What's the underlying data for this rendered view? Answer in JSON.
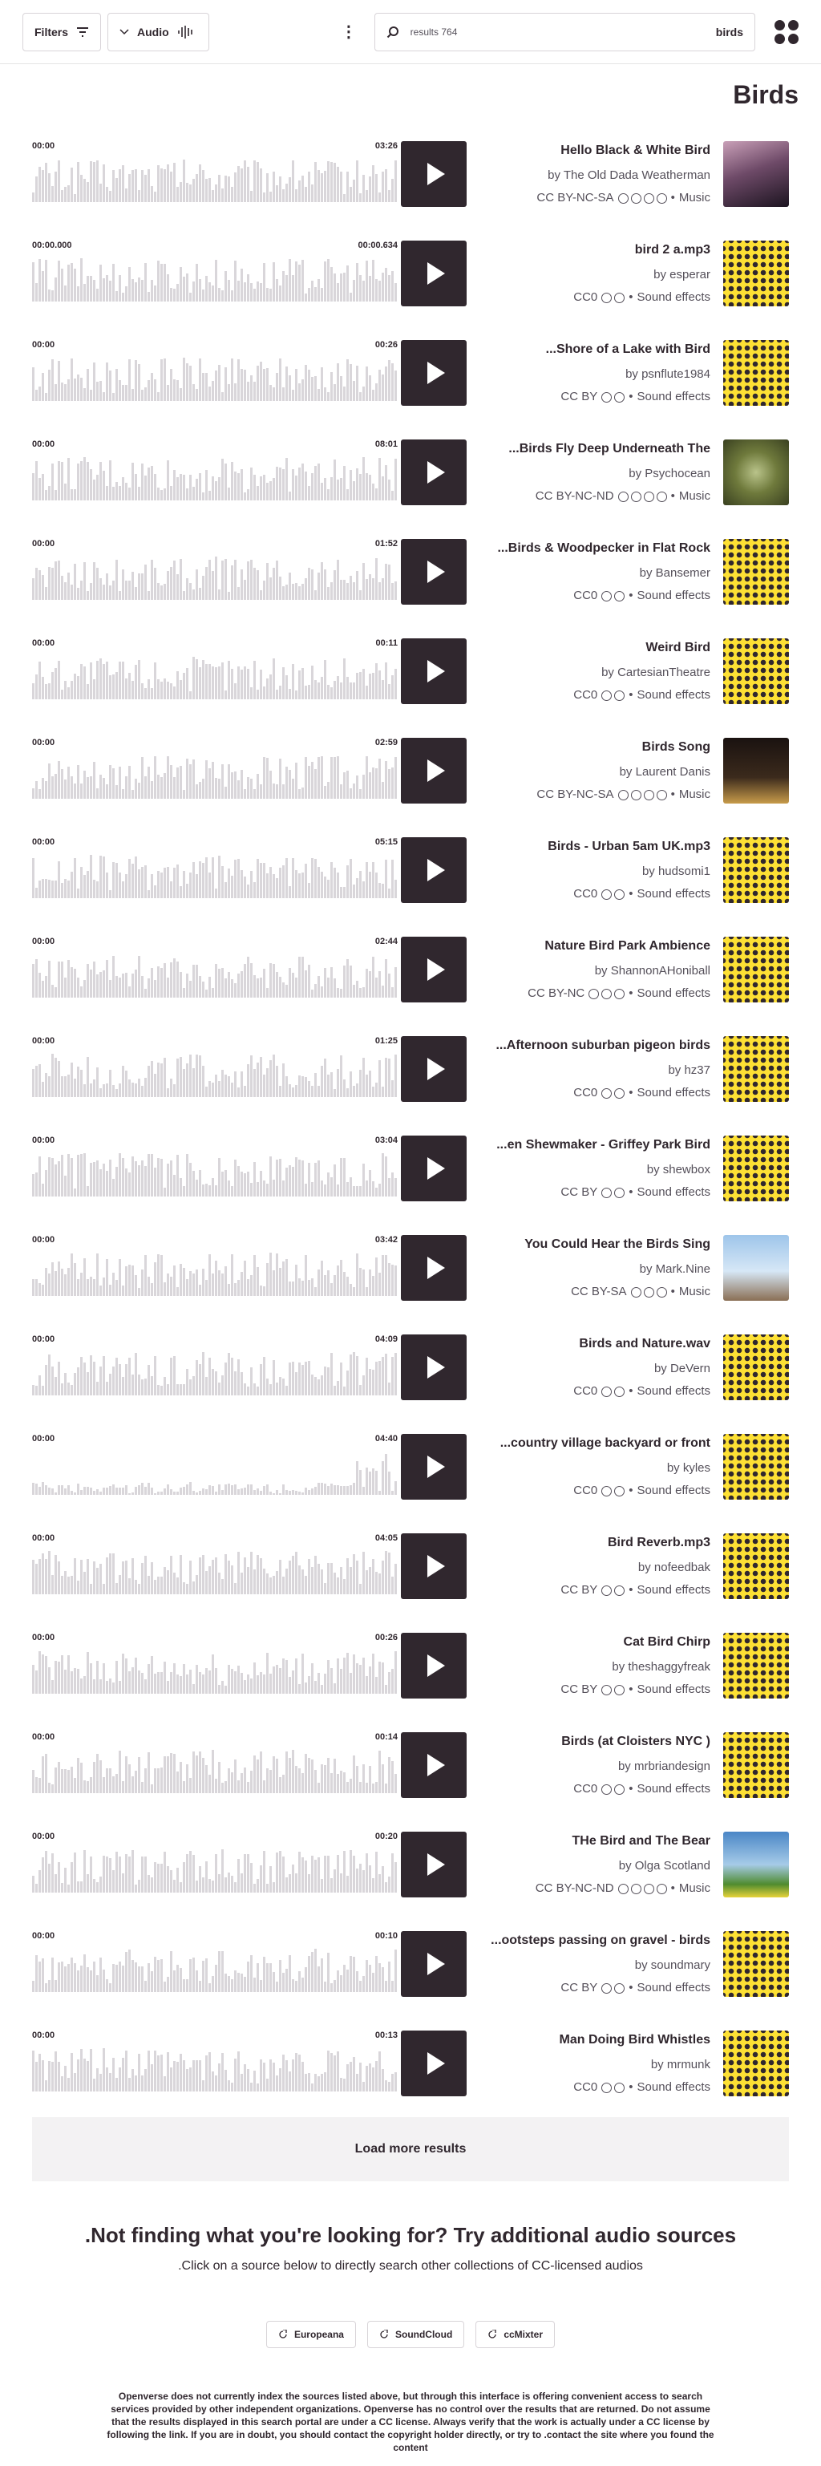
{
  "header": {
    "filters_label": "Filters",
    "content_type_label": "Audio",
    "search_count": "results 764",
    "search_query": "birds"
  },
  "page_title": "Birds",
  "results": [
    {
      "title": "Hello Black & White Bird",
      "author": "by The Old Dada Weatherman",
      "license": "CC BY-NC-SA",
      "category": "Music",
      "time_start": "00:00",
      "time_end": "03:26",
      "license_icon_count": 4,
      "thumb": "photo1"
    },
    {
      "title": "bird 2 a.mp3",
      "author": "by esperar",
      "license": "CC0",
      "category": "Sound effects",
      "time_start": "00:00.000",
      "time_end": "00:00.634",
      "license_icon_count": 2,
      "thumb": "dots"
    },
    {
      "title": "...Shore of a Lake with Bird",
      "author": "by psnflute1984",
      "license": "CC BY",
      "category": "Sound effects",
      "time_start": "00:00",
      "time_end": "00:26",
      "license_icon_count": 2,
      "thumb": "dots"
    },
    {
      "title": "...Birds Fly Deep Underneath The",
      "author": "by Psychocean",
      "license": "CC BY-NC-ND",
      "category": "Music",
      "time_start": "00:00",
      "time_end": "08:01",
      "license_icon_count": 4,
      "thumb": "photo2"
    },
    {
      "title": "...Birds & Woodpecker in Flat Rock",
      "author": "by Bansemer",
      "license": "CC0",
      "category": "Sound effects",
      "time_start": "00:00",
      "time_end": "01:52",
      "license_icon_count": 2,
      "thumb": "dots"
    },
    {
      "title": "Weird Bird",
      "author": "by CartesianTheatre",
      "license": "CC0",
      "category": "Sound effects",
      "time_start": "00:00",
      "time_end": "00:11",
      "license_icon_count": 2,
      "thumb": "dots"
    },
    {
      "title": "Birds Song",
      "author": "by Laurent Danis",
      "license": "CC BY-NC-SA",
      "category": "Music",
      "time_start": "00:00",
      "time_end": "02:59",
      "license_icon_count": 4,
      "thumb": "photo3"
    },
    {
      "title": "Birds - Urban 5am UK.mp3",
      "author": "by hudsomi1",
      "license": "CC0",
      "category": "Sound effects",
      "time_start": "00:00",
      "time_end": "05:15",
      "license_icon_count": 2,
      "thumb": "dots"
    },
    {
      "title": "Nature Bird Park Ambience",
      "author": "by ShannonAHoniball",
      "license": "CC BY-NC",
      "category": "Sound effects",
      "time_start": "00:00",
      "time_end": "02:44",
      "license_icon_count": 3,
      "thumb": "dots"
    },
    {
      "title": "...Afternoon suburban pigeon birds",
      "author": "by hz37",
      "license": "CC0",
      "category": "Sound effects",
      "time_start": "00:00",
      "time_end": "01:25",
      "license_icon_count": 2,
      "thumb": "dots"
    },
    {
      "title": "...en Shewmaker - Griffey Park Bird",
      "author": "by shewbox",
      "license": "CC BY",
      "category": "Sound effects",
      "time_start": "00:00",
      "time_end": "03:04",
      "license_icon_count": 2,
      "thumb": "dots"
    },
    {
      "title": "You Could Hear the Birds Sing",
      "author": "by Mark.Nine",
      "license": "CC BY-SA",
      "category": "Music",
      "time_start": "00:00",
      "time_end": "03:42",
      "license_icon_count": 3,
      "thumb": "photo4"
    },
    {
      "title": "Birds and Nature.wav",
      "author": "by DeVern",
      "license": "CC0",
      "category": "Sound effects",
      "time_start": "00:00",
      "time_end": "04:09",
      "license_icon_count": 2,
      "thumb": "dots"
    },
    {
      "title": "...country village backyard or front",
      "author": "by kyles",
      "license": "CC0",
      "category": "Sound effects",
      "time_start": "00:00",
      "time_end": "04:40",
      "license_icon_count": 2,
      "thumb": "dots"
    },
    {
      "title": "Bird Reverb.mp3",
      "author": "by nofeedbak",
      "license": "CC BY",
      "category": "Sound effects",
      "time_start": "00:00",
      "time_end": "04:05",
      "license_icon_count": 2,
      "thumb": "dots"
    },
    {
      "title": "Cat Bird Chirp",
      "author": "by theshaggyfreak",
      "license": "CC BY",
      "category": "Sound effects",
      "time_start": "00:00",
      "time_end": "00:26",
      "license_icon_count": 2,
      "thumb": "dots"
    },
    {
      "title": "Birds (at Cloisters NYC )",
      "author": "by mrbriandesign",
      "license": "CC0",
      "category": "Sound effects",
      "time_start": "00:00",
      "time_end": "00:14",
      "license_icon_count": 2,
      "thumb": "dots"
    },
    {
      "title": "THe Bird and The Bear",
      "author": "by Olga Scotland",
      "license": "CC BY-NC-ND",
      "category": "Music",
      "time_start": "00:00",
      "time_end": "00:20",
      "license_icon_count": 4,
      "thumb": "photo5"
    },
    {
      "title": "...ootsteps passing on gravel - birds",
      "author": "by soundmary",
      "license": "CC BY",
      "category": "Sound effects",
      "time_start": "00:00",
      "time_end": "00:10",
      "license_icon_count": 2,
      "thumb": "dots"
    },
    {
      "title": "Man Doing Bird Whistles",
      "author": "by mrmunk",
      "license": "CC0",
      "category": "Sound effects",
      "time_start": "00:00",
      "time_end": "00:13",
      "license_icon_count": 2,
      "thumb": "dots"
    }
  ],
  "load_more_label": "Load more results",
  "not_finding": {
    "heading": ".Not finding what you're looking for? Try additional audio sources",
    "subtext": ".Click on a source below to directly search other collections of CC-licensed audios"
  },
  "sources": [
    {
      "label": "Europeana"
    },
    {
      "label": "SoundCloud"
    },
    {
      "label": "ccMixter"
    }
  ],
  "disclaimer": "Openverse does not currently index the sources listed above, but through this interface is offering convenient access to search services provided by other independent organizations. Openverse has no control over the results that are returned. Do not assume that the results displayed in this search portal are under a CC license. Always verify that the work is actually under a CC license by following the link. If you are in doubt, you should contact the copyright holder directly, or try to .contact the site where you found the content"
}
